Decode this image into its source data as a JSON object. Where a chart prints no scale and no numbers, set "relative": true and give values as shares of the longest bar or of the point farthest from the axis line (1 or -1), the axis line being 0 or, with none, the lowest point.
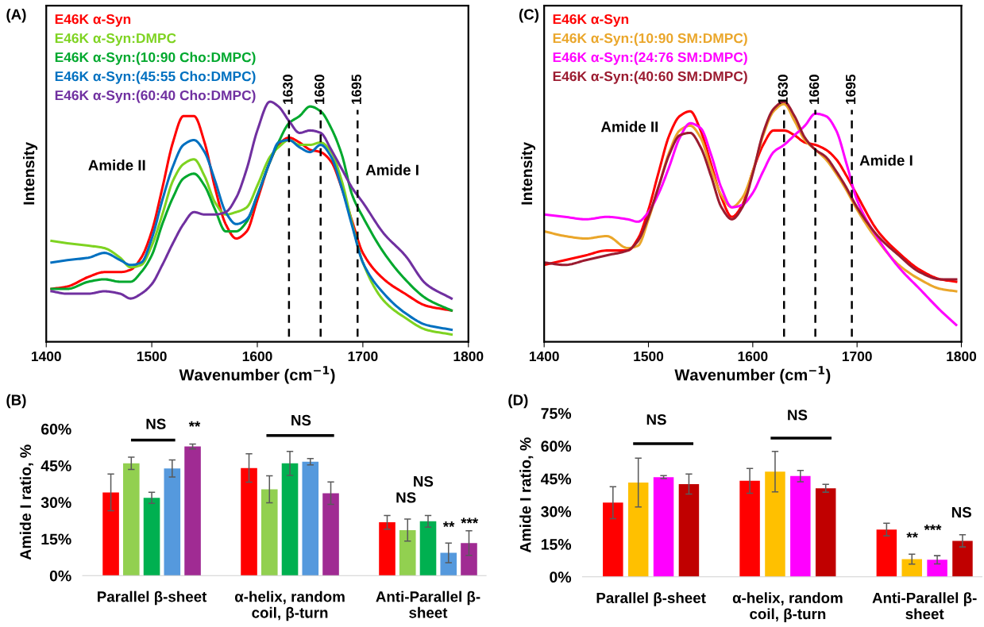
{
  "chart_data": [
    {
      "type": "line",
      "title": "(A)",
      "xlabel": "Wavenumber (cm$^{−1}$)",
      "ylabel": "Intensity",
      "relative": true,
      "legend": "top left",
      "x": [
        1405,
        1420,
        1440,
        1455,
        1470,
        1480,
        1490,
        1500,
        1510,
        1520,
        1530,
        1540,
        1550,
        1560,
        1570,
        1580,
        1590,
        1600,
        1612,
        1620,
        1630,
        1640,
        1650,
        1660,
        1670,
        1680,
        1690,
        1700,
        1720,
        1740,
        1760,
        1784
      ],
      "xlim": [
        1400,
        1800
      ],
      "xticks": [
        1400,
        1500,
        1600,
        1700,
        1800
      ],
      "series": [
        {
          "name": "E46K α-Syn",
          "color": "#ff0000",
          "values": [
            0.22,
            0.23,
            0.27,
            0.29,
            0.29,
            0.3,
            0.35,
            0.46,
            0.64,
            0.83,
            0.94,
            0.94,
            0.83,
            0.64,
            0.49,
            0.43,
            0.46,
            0.59,
            0.75,
            0.82,
            0.85,
            0.83,
            0.8,
            0.79,
            0.75,
            0.64,
            0.5,
            0.37,
            0.26,
            0.2,
            0.15,
            0.13
          ]
        },
        {
          "name": "E46K α-Syn:DMPC",
          "color": "#7ed321",
          "values": [
            0.42,
            0.41,
            0.4,
            0.39,
            0.35,
            0.31,
            0.32,
            0.4,
            0.53,
            0.67,
            0.74,
            0.76,
            0.69,
            0.58,
            0.53,
            0.54,
            0.56,
            0.65,
            0.77,
            0.81,
            0.84,
            0.82,
            0.82,
            0.83,
            0.79,
            0.67,
            0.49,
            0.33,
            0.17,
            0.1,
            0.05,
            0.03
          ]
        },
        {
          "name": "E46K α-Syn:(10:90 Cho:DMPC)",
          "color": "#00a82d",
          "values": [
            0.22,
            0.22,
            0.25,
            0.26,
            0.25,
            0.25,
            0.29,
            0.36,
            0.49,
            0.6,
            0.68,
            0.7,
            0.65,
            0.55,
            0.46,
            0.46,
            0.5,
            0.61,
            0.75,
            0.83,
            0.91,
            0.94,
            0.98,
            0.96,
            0.89,
            0.78,
            0.61,
            0.52,
            0.37,
            0.26,
            0.18,
            0.13
          ]
        },
        {
          "name": "E46K α-Syn:(45:55 Cho:DMPC)",
          "color": "#0070c0",
          "values": [
            0.33,
            0.34,
            0.35,
            0.37,
            0.34,
            0.32,
            0.33,
            0.43,
            0.59,
            0.73,
            0.82,
            0.84,
            0.79,
            0.67,
            0.54,
            0.49,
            0.51,
            0.61,
            0.75,
            0.83,
            0.84,
            0.81,
            0.79,
            0.82,
            0.77,
            0.64,
            0.48,
            0.33,
            0.2,
            0.12,
            0.07,
            0.05
          ]
        },
        {
          "name": "E46K α-Syn:(60:40 Cho:DMPC)",
          "color": "#7030a0",
          "values": [
            0.21,
            0.2,
            0.2,
            0.21,
            0.2,
            0.18,
            0.2,
            0.24,
            0.32,
            0.41,
            0.49,
            0.54,
            0.53,
            0.53,
            0.54,
            0.6,
            0.72,
            0.88,
            1.0,
            0.98,
            0.92,
            0.87,
            0.88,
            0.87,
            0.8,
            0.72,
            0.64,
            0.58,
            0.45,
            0.36,
            0.24,
            0.18
          ]
        }
      ],
      "ref_lines": [
        {
          "axis": "x",
          "value": 1630,
          "label": "1630",
          "color": "#000000",
          "line_style": "dashed"
        },
        {
          "axis": "x",
          "value": 1660,
          "label": "1660",
          "color": "#000000",
          "line_style": "dashed"
        },
        {
          "axis": "x",
          "value": 1695,
          "label": "1695",
          "color": "#000000",
          "line_style": "dashed"
        }
      ],
      "annotations": [
        "Amide II",
        "Amide I"
      ]
    },
    {
      "type": "bar",
      "title": "(B)",
      "ylabel": "Amide I ratio, %",
      "categories": [
        "Parallel β-sheet",
        "α-helix, random\ncoil, β-turn",
        "Anti-Parallel β-\nsheet"
      ],
      "ylim": [
        0,
        60
      ],
      "yticks": [
        {
          "value": 0,
          "label": "0%"
        },
        {
          "value": 15,
          "label": "15%"
        },
        {
          "value": 30,
          "label": "30%"
        },
        {
          "value": 45,
          "label": "45%"
        },
        {
          "value": 60,
          "label": "60%"
        }
      ],
      "series": [
        {
          "color": "#ff0000",
          "values": [
            34.0,
            44.0,
            21.8
          ],
          "errors": [
            7.5,
            5.8,
            2.8
          ]
        },
        {
          "color": "#92d050",
          "values": [
            45.9,
            35.3,
            18.6
          ],
          "errors": [
            2.5,
            5.5,
            4.5
          ]
        },
        {
          "color": "#00b050",
          "values": [
            31.8,
            45.9,
            22.2
          ],
          "errors": [
            2.3,
            4.9,
            2.4
          ]
        },
        {
          "color": "#5599dd",
          "values": [
            43.8,
            46.6,
            9.3
          ],
          "errors": [
            3.5,
            1.3,
            4.0
          ]
        },
        {
          "color": "#a02b93",
          "values": [
            52.8,
            33.7,
            13.3
          ],
          "errors": [
            1.0,
            4.6,
            5.0
          ]
        }
      ],
      "annotations": [
        "NS",
        "**",
        "NS",
        "NS",
        "NS",
        "**",
        "***"
      ]
    },
    {
      "type": "line",
      "title": "(C)",
      "xlabel": "Wavenumber (cm$^{−1}$)",
      "ylabel": "Intensity",
      "relative": true,
      "legend": "top left",
      "x": [
        1400,
        1420,
        1440,
        1460,
        1480,
        1490,
        1500,
        1510,
        1520,
        1530,
        1540,
        1550,
        1560,
        1570,
        1580,
        1590,
        1600,
        1610,
        1620,
        1630,
        1640,
        1650,
        1660,
        1670,
        1680,
        1690,
        1700,
        1720,
        1740,
        1760,
        1780,
        1795
      ],
      "xlim": [
        1400,
        1800
      ],
      "xticks": [
        1400,
        1500,
        1600,
        1700,
        1800
      ],
      "series": [
        {
          "name": "E46K α-Syn",
          "color": "#ff0000",
          "values": [
            0.32,
            0.34,
            0.36,
            0.38,
            0.38,
            0.43,
            0.55,
            0.71,
            0.86,
            0.94,
            0.96,
            0.88,
            0.74,
            0.6,
            0.52,
            0.57,
            0.71,
            0.82,
            0.88,
            0.88,
            0.86,
            0.83,
            0.82,
            0.8,
            0.76,
            0.69,
            0.61,
            0.46,
            0.37,
            0.3,
            0.26,
            0.25
          ]
        },
        {
          "name": "E46K α-Syn:(10:90 SM:DMPC)",
          "color": "#eaa62a",
          "values": [
            0.46,
            0.44,
            0.43,
            0.44,
            0.39,
            0.4,
            0.51,
            0.65,
            0.79,
            0.88,
            0.9,
            0.85,
            0.72,
            0.61,
            0.56,
            0.6,
            0.71,
            0.86,
            0.96,
            0.99,
            0.92,
            0.84,
            0.8,
            0.76,
            0.7,
            0.63,
            0.55,
            0.42,
            0.32,
            0.26,
            0.22,
            0.21
          ]
        },
        {
          "name": "E46K α-Syn:(24:76 SM:DMPC)",
          "color": "#ff00ff",
          "values": [
            0.53,
            0.52,
            0.51,
            0.52,
            0.51,
            0.5,
            0.54,
            0.62,
            0.73,
            0.85,
            0.91,
            0.89,
            0.78,
            0.64,
            0.56,
            0.57,
            0.62,
            0.71,
            0.79,
            0.82,
            0.86,
            0.9,
            0.95,
            0.94,
            0.88,
            0.74,
            0.59,
            0.43,
            0.31,
            0.22,
            0.13,
            0.07
          ]
        },
        {
          "name": "E46K α-Syn:(40:60 SM:DMPC)",
          "color": "#9b1b30",
          "values": [
            0.33,
            0.32,
            0.34,
            0.36,
            0.38,
            0.42,
            0.52,
            0.65,
            0.78,
            0.86,
            0.87,
            0.81,
            0.69,
            0.56,
            0.51,
            0.56,
            0.7,
            0.87,
            0.97,
            1.0,
            0.94,
            0.85,
            0.8,
            0.77,
            0.71,
            0.64,
            0.56,
            0.44,
            0.36,
            0.29,
            0.26,
            0.26
          ]
        }
      ],
      "ref_lines": [
        {
          "axis": "x",
          "value": 1630,
          "label": "1630",
          "color": "#000000",
          "line_style": "dashed"
        },
        {
          "axis": "x",
          "value": 1660,
          "label": "1660",
          "color": "#000000",
          "line_style": "dashed"
        },
        {
          "axis": "x",
          "value": 1695,
          "label": "1695",
          "color": "#000000",
          "line_style": "dashed"
        }
      ],
      "annotations": [
        "Amide II",
        "Amide I"
      ]
    },
    {
      "type": "bar",
      "title": "(D)",
      "ylabel": "Amide I ratio, %",
      "categories": [
        "Parallel β-sheet",
        "α-helix, random\ncoil, β-turn",
        "Anti-Parallel β-\nsheet"
      ],
      "ylim": [
        0,
        75
      ],
      "yticks": [
        {
          "value": 0,
          "label": "0%"
        },
        {
          "value": 15,
          "label": "15%"
        },
        {
          "value": 30,
          "label": "30%"
        },
        {
          "value": 45,
          "label": "45%"
        },
        {
          "value": 60,
          "label": "60%"
        },
        {
          "value": 75,
          "label": "75%"
        }
      ],
      "series": [
        {
          "color": "#ff0000",
          "values": [
            34.0,
            44.0,
            21.7
          ],
          "errors": [
            7.3,
            5.7,
            2.9
          ]
        },
        {
          "color": "#ffc000",
          "values": [
            43.2,
            48.2,
            8.1
          ],
          "errors": [
            11.2,
            9.3,
            2.3
          ]
        },
        {
          "color": "#ff00ff",
          "values": [
            45.7,
            46.2,
            7.8
          ],
          "errors": [
            0.7,
            2.6,
            1.9
          ]
        },
        {
          "color": "#c00000",
          "values": [
            42.5,
            40.6,
            16.5
          ],
          "errors": [
            4.6,
            1.8,
            2.8
          ]
        }
      ],
      "annotations": [
        "NS",
        "NS",
        "**",
        "***",
        "NS"
      ]
    }
  ]
}
